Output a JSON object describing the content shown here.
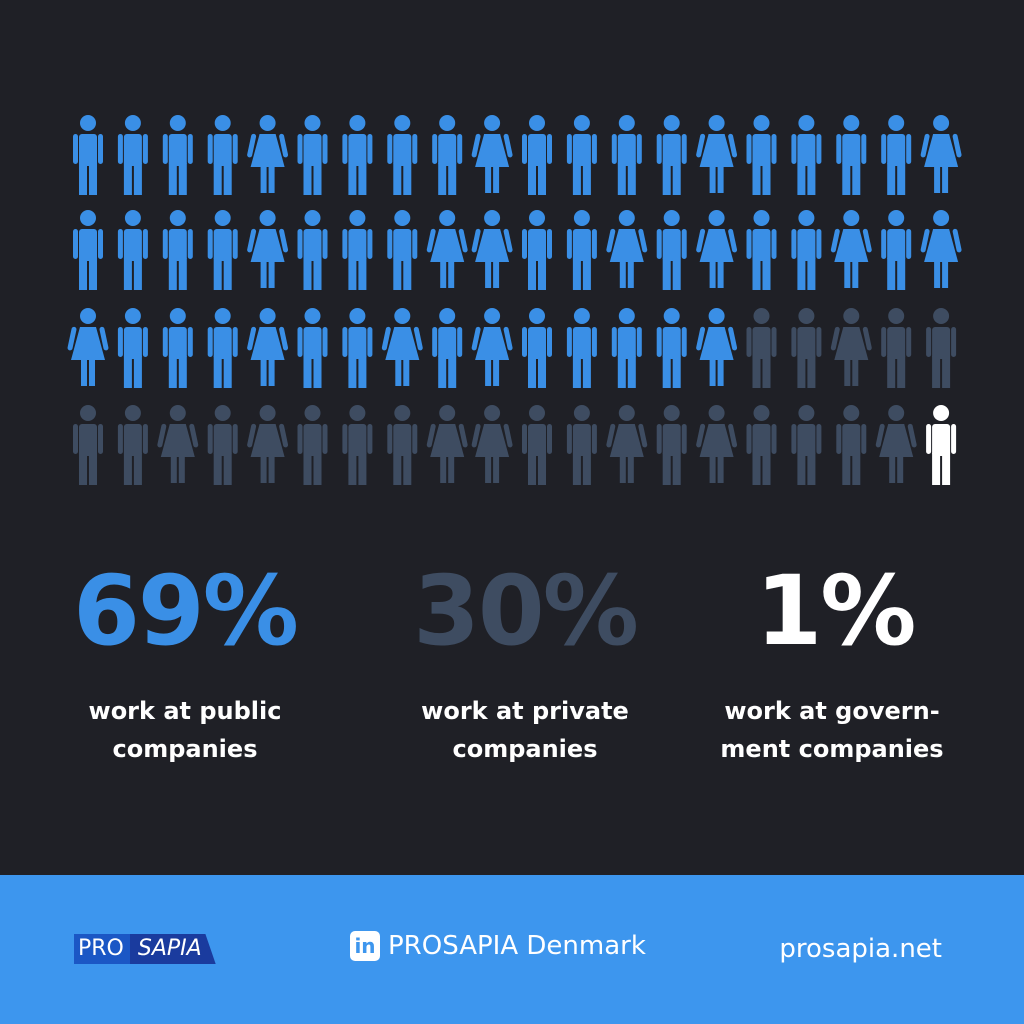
{
  "chart_data": {
    "type": "pictogram",
    "categories": [
      "work at public companies",
      "work at private companies",
      "work at govern­ment companies"
    ],
    "values": [
      69,
      30,
      1
    ],
    "value_labels": [
      "69%",
      "30%",
      "1%"
    ],
    "colors": [
      "#3a8fe6",
      "#3e4c61",
      "#ffffff"
    ]
  },
  "footer": {
    "logo_left": "PRO",
    "logo_right": "SAPIA",
    "linkedin_icon": "in",
    "linkedin": "PROSAPIA Denmark",
    "website": "prosapia.net"
  }
}
